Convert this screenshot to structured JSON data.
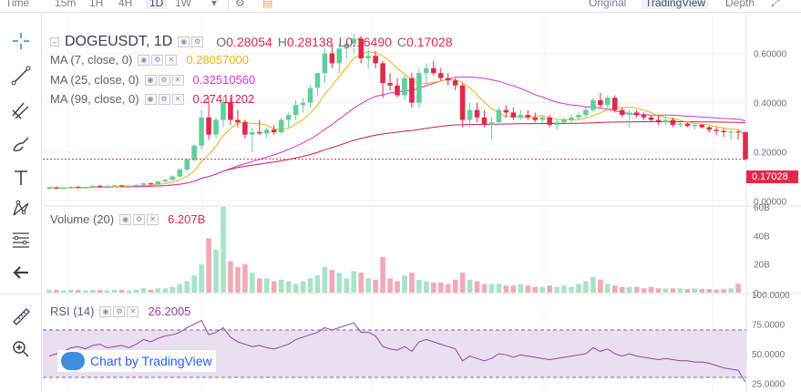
{
  "toolbar": {
    "items": [
      {
        "label": "Time",
        "active": false
      },
      {
        "label": "15m",
        "active": false
      },
      {
        "label": "1H",
        "active": false
      },
      {
        "label": "4H",
        "active": false
      },
      {
        "label": "1D",
        "active": true
      },
      {
        "label": "1W",
        "active": false
      }
    ],
    "views": [
      {
        "label": "Original",
        "active": false
      },
      {
        "label": "TradingView",
        "active": true
      },
      {
        "label": "Depth",
        "active": false
      }
    ],
    "icons": [
      "chevron-down-icon",
      "settings-sliders-icon",
      "notes-icon",
      "fullscreen-icon"
    ]
  },
  "tools": [
    "crosshair-icon",
    "trendline-icon",
    "pitchfork-icon",
    "brush-icon",
    "text-icon",
    "pattern-icon",
    "fib-icon",
    "back-arrow-icon",
    "ruler-icon",
    "zoom-icon"
  ],
  "main_legend": {
    "symbol": "DOGEUSDT, 1D",
    "o_key": "O",
    "open": "0.28054",
    "h_key": "H",
    "high": "0.28138",
    "l_key": "L",
    "low": "0.16490",
    "c_key": "C",
    "close": "0.17028"
  },
  "ma_legend": [
    {
      "label": "MA (7, close, 0)",
      "value": "0.28057000",
      "color": "#e5b512"
    },
    {
      "label": "MA (25, close, 0)",
      "value": "0.32510560",
      "color": "#d633d6"
    },
    {
      "label": "MA (99, close, 0)",
      "value": "0.27411202",
      "color": "#c7204f"
    }
  ],
  "volume_legend": {
    "label": "Volume (20)",
    "value": "6.207B"
  },
  "rsi_legend": {
    "label": "RSI (14)",
    "value": "26.2005"
  },
  "last_price": "0.17028",
  "watermark": "Chart by TradingView",
  "colors": {
    "up": "#5fcf9c",
    "down": "#e0294a",
    "up_vol": "#a7e3c8",
    "down_vol": "#f3a9b7",
    "rsi_line": "#9b3fa9",
    "rsi_band": "#eadff0"
  },
  "chart_data": {
    "type": "candlestick",
    "price_axis": {
      "ticks": [
        0.0,
        0.2,
        0.4,
        0.6
      ],
      "labels": [
        "0.00000",
        "0.20000",
        "0.40000",
        "0.60000"
      ],
      "range": [
        -0.02,
        0.68
      ]
    },
    "volume_axis": {
      "ticks": [
        0,
        20,
        40,
        60
      ],
      "labels": [
        "0",
        "20B",
        "40B",
        "60B"
      ],
      "range": [
        0,
        60
      ]
    },
    "rsi_axis": {
      "ticks": [
        25,
        50,
        75,
        100
      ],
      "labels": [
        "25.0000",
        "50.0000",
        "75.0000",
        "100.0000"
      ],
      "range": [
        20,
        100
      ],
      "bands": [
        30,
        70
      ]
    },
    "candles": [
      [
        0.05,
        0.058,
        0.045,
        0.055
      ],
      [
        0.055,
        0.06,
        0.05,
        0.052
      ],
      [
        0.052,
        0.056,
        0.048,
        0.054
      ],
      [
        0.054,
        0.06,
        0.051,
        0.057
      ],
      [
        0.057,
        0.062,
        0.053,
        0.055
      ],
      [
        0.055,
        0.059,
        0.05,
        0.058
      ],
      [
        0.058,
        0.066,
        0.055,
        0.062
      ],
      [
        0.062,
        0.065,
        0.056,
        0.058
      ],
      [
        0.058,
        0.064,
        0.055,
        0.061
      ],
      [
        0.061,
        0.066,
        0.058,
        0.064
      ],
      [
        0.064,
        0.066,
        0.058,
        0.06
      ],
      [
        0.06,
        0.064,
        0.057,
        0.063
      ],
      [
        0.063,
        0.068,
        0.06,
        0.066
      ],
      [
        0.066,
        0.075,
        0.062,
        0.072
      ],
      [
        0.072,
        0.076,
        0.066,
        0.069
      ],
      [
        0.069,
        0.082,
        0.066,
        0.08
      ],
      [
        0.08,
        0.09,
        0.074,
        0.086
      ],
      [
        0.086,
        0.105,
        0.082,
        0.1
      ],
      [
        0.1,
        0.135,
        0.095,
        0.128
      ],
      [
        0.128,
        0.175,
        0.12,
        0.168
      ],
      [
        0.168,
        0.23,
        0.16,
        0.225
      ],
      [
        0.225,
        0.37,
        0.21,
        0.34
      ],
      [
        0.34,
        0.42,
        0.25,
        0.27
      ],
      [
        0.27,
        0.34,
        0.255,
        0.33
      ],
      [
        0.33,
        0.42,
        0.3,
        0.4
      ],
      [
        0.4,
        0.42,
        0.31,
        0.33
      ],
      [
        0.33,
        0.37,
        0.3,
        0.32
      ],
      [
        0.32,
        0.33,
        0.255,
        0.27
      ],
      [
        0.27,
        0.3,
        0.2,
        0.28
      ],
      [
        0.28,
        0.33,
        0.27,
        0.275
      ],
      [
        0.275,
        0.3,
        0.255,
        0.29
      ],
      [
        0.29,
        0.31,
        0.27,
        0.28
      ],
      [
        0.28,
        0.34,
        0.27,
        0.33
      ],
      [
        0.33,
        0.36,
        0.3,
        0.35
      ],
      [
        0.35,
        0.41,
        0.33,
        0.39
      ],
      [
        0.39,
        0.42,
        0.36,
        0.4
      ],
      [
        0.4,
        0.47,
        0.38,
        0.46
      ],
      [
        0.46,
        0.52,
        0.43,
        0.52
      ],
      [
        0.52,
        0.62,
        0.48,
        0.6
      ],
      [
        0.6,
        0.64,
        0.54,
        0.56
      ],
      [
        0.56,
        0.64,
        0.52,
        0.62
      ],
      [
        0.62,
        0.65,
        0.58,
        0.64
      ],
      [
        0.64,
        0.68,
        0.6,
        0.66
      ],
      [
        0.66,
        0.67,
        0.56,
        0.58
      ],
      [
        0.58,
        0.62,
        0.54,
        0.59
      ],
      [
        0.59,
        0.61,
        0.54,
        0.56
      ],
      [
        0.56,
        0.57,
        0.42,
        0.48
      ],
      [
        0.48,
        0.52,
        0.45,
        0.47
      ],
      [
        0.47,
        0.5,
        0.42,
        0.43
      ],
      [
        0.43,
        0.51,
        0.41,
        0.5
      ],
      [
        0.5,
        0.52,
        0.38,
        0.4
      ],
      [
        0.4,
        0.54,
        0.38,
        0.52
      ],
      [
        0.52,
        0.56,
        0.47,
        0.54
      ],
      [
        0.54,
        0.57,
        0.51,
        0.52
      ],
      [
        0.52,
        0.54,
        0.49,
        0.5
      ],
      [
        0.5,
        0.52,
        0.47,
        0.49
      ],
      [
        0.49,
        0.5,
        0.45,
        0.47
      ],
      [
        0.47,
        0.48,
        0.3,
        0.33
      ],
      [
        0.33,
        0.4,
        0.3,
        0.37
      ],
      [
        0.37,
        0.4,
        0.32,
        0.34
      ],
      [
        0.34,
        0.37,
        0.3,
        0.31
      ],
      [
        0.31,
        0.34,
        0.25,
        0.32
      ],
      [
        0.32,
        0.38,
        0.31,
        0.37
      ],
      [
        0.37,
        0.39,
        0.34,
        0.36
      ],
      [
        0.36,
        0.38,
        0.33,
        0.34
      ],
      [
        0.34,
        0.37,
        0.33,
        0.35
      ],
      [
        0.35,
        0.37,
        0.33,
        0.34
      ],
      [
        0.34,
        0.36,
        0.32,
        0.33
      ],
      [
        0.33,
        0.35,
        0.31,
        0.34
      ],
      [
        0.34,
        0.35,
        0.3,
        0.31
      ],
      [
        0.31,
        0.33,
        0.29,
        0.32
      ],
      [
        0.32,
        0.34,
        0.31,
        0.33
      ],
      [
        0.33,
        0.35,
        0.32,
        0.34
      ],
      [
        0.34,
        0.36,
        0.33,
        0.35
      ],
      [
        0.35,
        0.38,
        0.34,
        0.37
      ],
      [
        0.37,
        0.42,
        0.36,
        0.41
      ],
      [
        0.41,
        0.44,
        0.38,
        0.39
      ],
      [
        0.39,
        0.43,
        0.37,
        0.42
      ],
      [
        0.42,
        0.43,
        0.36,
        0.37
      ],
      [
        0.37,
        0.38,
        0.34,
        0.35
      ],
      [
        0.35,
        0.37,
        0.3,
        0.36
      ],
      [
        0.36,
        0.37,
        0.34,
        0.35
      ],
      [
        0.35,
        0.36,
        0.33,
        0.34
      ],
      [
        0.34,
        0.35,
        0.32,
        0.33
      ],
      [
        0.33,
        0.35,
        0.31,
        0.32
      ],
      [
        0.32,
        0.34,
        0.31,
        0.33
      ],
      [
        0.33,
        0.34,
        0.3,
        0.31
      ],
      [
        0.31,
        0.32,
        0.3,
        0.315
      ],
      [
        0.315,
        0.32,
        0.3,
        0.305
      ],
      [
        0.305,
        0.315,
        0.29,
        0.31
      ],
      [
        0.31,
        0.315,
        0.295,
        0.3
      ],
      [
        0.3,
        0.305,
        0.28,
        0.29
      ],
      [
        0.29,
        0.3,
        0.27,
        0.285
      ],
      [
        0.285,
        0.295,
        0.26,
        0.28
      ],
      [
        0.28,
        0.29,
        0.25,
        0.282
      ],
      [
        0.282,
        0.288,
        0.25,
        0.281
      ],
      [
        0.28054,
        0.28138,
        0.1649,
        0.17028
      ]
    ],
    "volume": [
      2,
      2,
      1.5,
      2,
      2,
      1.5,
      2,
      2,
      1.5,
      2,
      2,
      1.5,
      2,
      3,
      2,
      3,
      3,
      4,
      6,
      8,
      12,
      20,
      38,
      30,
      60,
      22,
      18,
      20,
      14,
      10,
      10,
      8,
      9,
      8,
      6,
      8,
      10,
      12,
      18,
      16,
      14,
      10,
      15,
      14,
      10,
      9,
      25,
      10,
      8,
      12,
      14,
      9,
      8,
      7,
      7,
      6,
      9,
      14,
      9,
      8,
      6,
      6,
      6,
      5,
      5,
      6,
      5,
      4,
      4,
      5,
      4,
      5,
      4,
      6,
      8,
      11,
      9,
      6,
      5,
      4,
      4,
      4,
      3,
      4,
      3,
      3,
      3,
      3,
      2.5,
      3,
      2.5,
      2.5,
      2,
      2.5,
      3,
      6.2
    ],
    "rsi": [
      48,
      50,
      52,
      55,
      56,
      54,
      57,
      58,
      55,
      56,
      57,
      55,
      58,
      62,
      60,
      63,
      65,
      66,
      68,
      72,
      75,
      78,
      66,
      68,
      72,
      64,
      60,
      58,
      56,
      57,
      55,
      54,
      56,
      58,
      62,
      64,
      66,
      68,
      72,
      70,
      72,
      74,
      76,
      68,
      68,
      65,
      56,
      54,
      53,
      56,
      52,
      60,
      62,
      60,
      58,
      56,
      54,
      44,
      48,
      46,
      44,
      46,
      50,
      49,
      47,
      49,
      48,
      47,
      46,
      45,
      46,
      47,
      48,
      49,
      50,
      55,
      52,
      54,
      50,
      48,
      50,
      48,
      47,
      46,
      45,
      46,
      45,
      44,
      44,
      43,
      43,
      42,
      40,
      38,
      37,
      36,
      26.2
    ]
  }
}
